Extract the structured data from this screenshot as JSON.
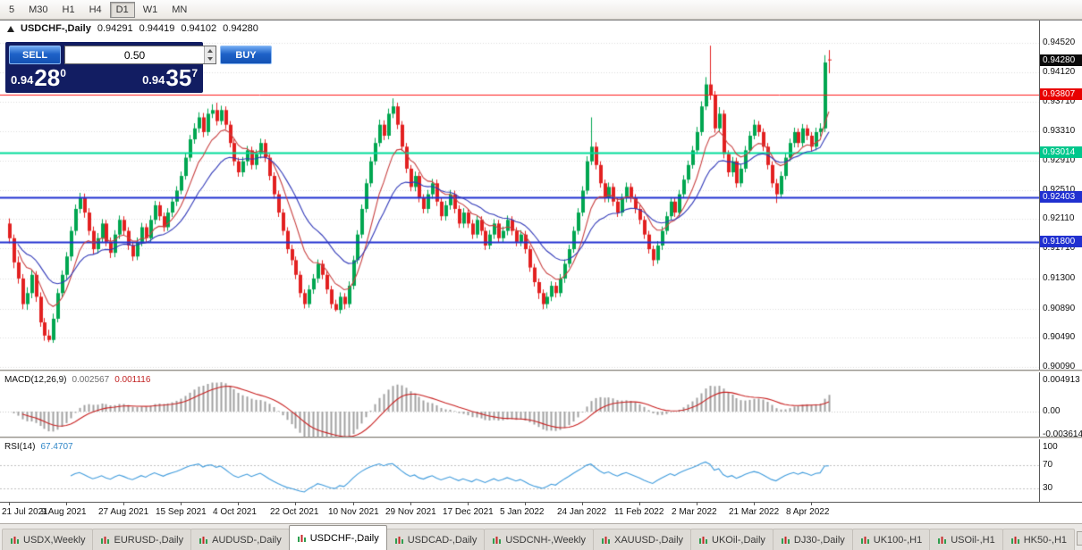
{
  "toolbar": {
    "timeframes": [
      {
        "label": "5",
        "active": false
      },
      {
        "label": "M30",
        "active": false
      },
      {
        "label": "H1",
        "active": false
      },
      {
        "label": "H4",
        "active": false
      },
      {
        "label": "D1",
        "active": true
      },
      {
        "label": "W1",
        "active": false
      },
      {
        "label": "MN",
        "active": false
      }
    ]
  },
  "chart": {
    "symbol_label": "USDCHF-,Daily",
    "ohlc": {
      "open": "0.94291",
      "high": "0.94419",
      "low": "0.94102",
      "close": "0.94280"
    },
    "y_axis": {
      "ticks": [
        "0.94520",
        "0.94120",
        "0.93710",
        "0.93310",
        "0.92910",
        "0.92510",
        "0.92110",
        "0.91710",
        "0.91300",
        "0.90890",
        "0.90490",
        "0.90090"
      ],
      "current": {
        "label": "0.94280",
        "value": 0.9428,
        "color": "#0A0A0A"
      },
      "level_badges": [
        {
          "label": "0.93807",
          "value": 0.93807,
          "color": "#E80000"
        },
        {
          "label": "0.93014",
          "value": 0.93014,
          "color": "#00C78C"
        },
        {
          "label": "0.92403",
          "value": 0.92403,
          "color": "#2030D0"
        },
        {
          "label": "0.91800",
          "value": 0.918,
          "color": "#2030D0"
        }
      ]
    },
    "levels": [
      {
        "value": 0.93807,
        "color": "#FF1A1A",
        "width": 1
      },
      {
        "value": 0.93014,
        "color": "#00DC9A",
        "width": 2
      },
      {
        "value": 0.92403,
        "color": "#2030D0",
        "width": 2
      },
      {
        "value": 0.918,
        "color": "#2030D0",
        "width": 2
      }
    ]
  },
  "trade": {
    "sell_label": "SELL",
    "buy_label": "BUY",
    "volume": "0.50",
    "sell_price": {
      "prefix": "0.94",
      "big": "28",
      "sup": "0"
    },
    "buy_price": {
      "prefix": "0.94",
      "big": "35",
      "sup": "7"
    }
  },
  "indicators": {
    "macd": {
      "label": "MACD(12,26,9)",
      "value_main": "0.002567",
      "value_signal": "0.001116",
      "fast": 12,
      "slow": 26,
      "signal": 9,
      "histogram_color": "#A0A0A0",
      "signal_color": "#C82020",
      "axis": [
        {
          "label": "0.004913",
          "value": 0.004913
        },
        {
          "label": "0.00",
          "value": 0
        },
        {
          "label": "-0.003614",
          "value": -0.003614
        }
      ]
    },
    "rsi": {
      "label": "RSI(14)",
      "value": "67.4707",
      "period": 14,
      "color": "#3F9BDC",
      "levels": [
        70,
        30
      ],
      "axis": [
        {
          "label": "100",
          "value": 100
        },
        {
          "label": "70",
          "value": 70
        },
        {
          "label": "30",
          "value": 30
        }
      ]
    }
  },
  "chart_data": {
    "type": "candlestick",
    "symbol": "USDCHF-",
    "timeframe": "Daily",
    "y_range": [
      0.9006,
      0.9483
    ],
    "x_labels": [
      "21 Jul 2021",
      "9 Aug 2021",
      "27 Aug 2021",
      "15 Sep 2021",
      "4 Oct 2021",
      "22 Oct 2021",
      "10 Nov 2021",
      "29 Nov 2021",
      "17 Dec 2021",
      "5 Jan 2022",
      "24 Jan 2022",
      "11 Feb 2022",
      "2 Mar 2022",
      "21 Mar 2022",
      "8 Apr 2022"
    ],
    "bars_per_label": 13,
    "up_color": "#00A650",
    "down_color": "#E22020",
    "overlays": [
      {
        "name": "ma-fast",
        "type": "ema",
        "period": 9,
        "color": "#C84040"
      },
      {
        "name": "ma-slow",
        "type": "ema",
        "period": 20,
        "color": "#3038B8"
      }
    ],
    "candles": [
      [
        0.9205,
        0.9212,
        0.9178,
        0.9185
      ],
      [
        0.9185,
        0.919,
        0.9144,
        0.9152
      ],
      [
        0.9152,
        0.916,
        0.9123,
        0.913
      ],
      [
        0.913,
        0.9136,
        0.9088,
        0.9095
      ],
      [
        0.9095,
        0.9118,
        0.9087,
        0.911
      ],
      [
        0.911,
        0.9142,
        0.9103,
        0.9135
      ],
      [
        0.9135,
        0.914,
        0.9098,
        0.9105
      ],
      [
        0.9105,
        0.9111,
        0.9064,
        0.907
      ],
      [
        0.907,
        0.9076,
        0.9045,
        0.9052
      ],
      [
        0.9052,
        0.906,
        0.9043,
        0.9046
      ],
      [
        0.9046,
        0.9082,
        0.9042,
        0.9075
      ],
      [
        0.9075,
        0.9116,
        0.907,
        0.911
      ],
      [
        0.911,
        0.9141,
        0.9104,
        0.9135
      ],
      [
        0.9135,
        0.9166,
        0.9129,
        0.916
      ],
      [
        0.916,
        0.9201,
        0.9154,
        0.9195
      ],
      [
        0.9195,
        0.9231,
        0.9189,
        0.9225
      ],
      [
        0.9225,
        0.9247,
        0.9219,
        0.924
      ],
      [
        0.924,
        0.9246,
        0.9213,
        0.922
      ],
      [
        0.922,
        0.9226,
        0.9189,
        0.9195
      ],
      [
        0.9195,
        0.9201,
        0.9163,
        0.917
      ],
      [
        0.917,
        0.9192,
        0.9164,
        0.9185
      ],
      [
        0.9185,
        0.9211,
        0.9179,
        0.9205
      ],
      [
        0.9205,
        0.921,
        0.9174,
        0.918
      ],
      [
        0.918,
        0.9186,
        0.9158,
        0.9165
      ],
      [
        0.9165,
        0.9196,
        0.9159,
        0.919
      ],
      [
        0.919,
        0.9216,
        0.9184,
        0.921
      ],
      [
        0.921,
        0.9215,
        0.9189,
        0.9195
      ],
      [
        0.9195,
        0.92,
        0.9169,
        0.9175
      ],
      [
        0.9175,
        0.918,
        0.9154,
        0.916
      ],
      [
        0.916,
        0.9186,
        0.9155,
        0.918
      ],
      [
        0.918,
        0.9206,
        0.9174,
        0.92
      ],
      [
        0.92,
        0.9205,
        0.9179,
        0.9185
      ],
      [
        0.9185,
        0.9216,
        0.918,
        0.921
      ],
      [
        0.921,
        0.9236,
        0.9204,
        0.923
      ],
      [
        0.923,
        0.9235,
        0.9209,
        0.9215
      ],
      [
        0.9215,
        0.922,
        0.9194,
        0.92
      ],
      [
        0.92,
        0.9226,
        0.9195,
        0.922
      ],
      [
        0.922,
        0.9241,
        0.9214,
        0.9235
      ],
      [
        0.9235,
        0.9256,
        0.9229,
        0.925
      ],
      [
        0.925,
        0.9276,
        0.9245,
        0.927
      ],
      [
        0.927,
        0.9301,
        0.9265,
        0.9295
      ],
      [
        0.9295,
        0.9326,
        0.929,
        0.932
      ],
      [
        0.932,
        0.9342,
        0.9314,
        0.9335
      ],
      [
        0.9335,
        0.9357,
        0.9329,
        0.935
      ],
      [
        0.935,
        0.9356,
        0.9323,
        0.933
      ],
      [
        0.933,
        0.9362,
        0.9325,
        0.9355
      ],
      [
        0.9355,
        0.9368,
        0.9349,
        0.936
      ],
      [
        0.936,
        0.937,
        0.9339,
        0.9345
      ],
      [
        0.9345,
        0.9366,
        0.934,
        0.936
      ],
      [
        0.936,
        0.9365,
        0.9334,
        0.934
      ],
      [
        0.934,
        0.9345,
        0.9309,
        0.9315
      ],
      [
        0.9315,
        0.932,
        0.9284,
        0.929
      ],
      [
        0.929,
        0.9295,
        0.9269,
        0.9275
      ],
      [
        0.9275,
        0.9296,
        0.9269,
        0.929
      ],
      [
        0.929,
        0.9311,
        0.9284,
        0.9305
      ],
      [
        0.9305,
        0.931,
        0.9279,
        0.9285
      ],
      [
        0.9285,
        0.9306,
        0.9279,
        0.93
      ],
      [
        0.93,
        0.9321,
        0.9294,
        0.9315
      ],
      [
        0.9315,
        0.932,
        0.9289,
        0.9295
      ],
      [
        0.9295,
        0.93,
        0.9264,
        0.927
      ],
      [
        0.927,
        0.9275,
        0.9239,
        0.9245
      ],
      [
        0.9245,
        0.925,
        0.9214,
        0.922
      ],
      [
        0.922,
        0.9225,
        0.9189,
        0.9195
      ],
      [
        0.9195,
        0.92,
        0.9164,
        0.917
      ],
      [
        0.917,
        0.9176,
        0.9148,
        0.9155
      ],
      [
        0.9155,
        0.916,
        0.9129,
        0.9135
      ],
      [
        0.9135,
        0.914,
        0.9104,
        0.911
      ],
      [
        0.911,
        0.9115,
        0.9089,
        0.9095
      ],
      [
        0.9095,
        0.9121,
        0.909,
        0.9115
      ],
      [
        0.9115,
        0.9136,
        0.9109,
        0.913
      ],
      [
        0.913,
        0.9156,
        0.9124,
        0.915
      ],
      [
        0.915,
        0.9155,
        0.9129,
        0.9135
      ],
      [
        0.9135,
        0.914,
        0.9109,
        0.9115
      ],
      [
        0.9115,
        0.912,
        0.9089,
        0.9095
      ],
      [
        0.9095,
        0.9101,
        0.9085,
        0.9087
      ],
      [
        0.9087,
        0.9111,
        0.9082,
        0.9105
      ],
      [
        0.9105,
        0.911,
        0.9088,
        0.9095
      ],
      [
        0.9095,
        0.9126,
        0.909,
        0.912
      ],
      [
        0.912,
        0.9161,
        0.9115,
        0.9155
      ],
      [
        0.9155,
        0.9196,
        0.915,
        0.919
      ],
      [
        0.919,
        0.9231,
        0.9185,
        0.9225
      ],
      [
        0.9225,
        0.9266,
        0.922,
        0.926
      ],
      [
        0.926,
        0.9296,
        0.9255,
        0.929
      ],
      [
        0.929,
        0.9322,
        0.9285,
        0.9315
      ],
      [
        0.9315,
        0.9347,
        0.931,
        0.934
      ],
      [
        0.934,
        0.9346,
        0.9319,
        0.9325
      ],
      [
        0.9325,
        0.9362,
        0.932,
        0.9355
      ],
      [
        0.9355,
        0.9376,
        0.9349,
        0.9365
      ],
      [
        0.9365,
        0.937,
        0.9334,
        0.934
      ],
      [
        0.934,
        0.9345,
        0.9304,
        0.931
      ],
      [
        0.931,
        0.9315,
        0.9274,
        0.928
      ],
      [
        0.928,
        0.9285,
        0.9249,
        0.9255
      ],
      [
        0.9255,
        0.9276,
        0.9249,
        0.927
      ],
      [
        0.927,
        0.9275,
        0.9234,
        0.924
      ],
      [
        0.924,
        0.9245,
        0.9219,
        0.9225
      ],
      [
        0.9225,
        0.9251,
        0.9219,
        0.9245
      ],
      [
        0.9245,
        0.9266,
        0.9239,
        0.926
      ],
      [
        0.926,
        0.9265,
        0.9229,
        0.9235
      ],
      [
        0.9235,
        0.924,
        0.9209,
        0.9215
      ],
      [
        0.9215,
        0.9236,
        0.9209,
        0.923
      ],
      [
        0.923,
        0.9251,
        0.9224,
        0.9245
      ],
      [
        0.9245,
        0.925,
        0.9219,
        0.9225
      ],
      [
        0.9225,
        0.923,
        0.9199,
        0.9205
      ],
      [
        0.9205,
        0.9226,
        0.9199,
        0.922
      ],
      [
        0.922,
        0.9225,
        0.9199,
        0.9205
      ],
      [
        0.9205,
        0.921,
        0.9184,
        0.919
      ],
      [
        0.919,
        0.9216,
        0.9185,
        0.921
      ],
      [
        0.921,
        0.9215,
        0.9189,
        0.9195
      ],
      [
        0.9195,
        0.92,
        0.9169,
        0.9175
      ],
      [
        0.9175,
        0.9196,
        0.917,
        0.919
      ],
      [
        0.919,
        0.9211,
        0.9184,
        0.9205
      ],
      [
        0.9205,
        0.921,
        0.9179,
        0.9185
      ],
      [
        0.9185,
        0.9201,
        0.9179,
        0.9195
      ],
      [
        0.9195,
        0.9216,
        0.9189,
        0.921
      ],
      [
        0.921,
        0.9215,
        0.9189,
        0.9195
      ],
      [
        0.9195,
        0.92,
        0.9174,
        0.918
      ],
      [
        0.918,
        0.9196,
        0.9174,
        0.919
      ],
      [
        0.919,
        0.9195,
        0.9164,
        0.917
      ],
      [
        0.917,
        0.9175,
        0.9139,
        0.9145
      ],
      [
        0.9145,
        0.915,
        0.9119,
        0.9125
      ],
      [
        0.9125,
        0.913,
        0.9102,
        0.911
      ],
      [
        0.911,
        0.9115,
        0.9088,
        0.9095
      ],
      [
        0.9095,
        0.9111,
        0.9089,
        0.9105
      ],
      [
        0.9105,
        0.9126,
        0.9099,
        0.912
      ],
      [
        0.912,
        0.9125,
        0.9104,
        0.911
      ],
      [
        0.911,
        0.9136,
        0.9105,
        0.913
      ],
      [
        0.913,
        0.9156,
        0.9124,
        0.915
      ],
      [
        0.915,
        0.9176,
        0.9145,
        0.917
      ],
      [
        0.917,
        0.9201,
        0.9165,
        0.9195
      ],
      [
        0.9195,
        0.9226,
        0.919,
        0.922
      ],
      [
        0.922,
        0.9256,
        0.9215,
        0.925
      ],
      [
        0.925,
        0.9297,
        0.9245,
        0.929
      ],
      [
        0.929,
        0.935,
        0.9285,
        0.931
      ],
      [
        0.931,
        0.9316,
        0.9279,
        0.9285
      ],
      [
        0.9285,
        0.929,
        0.9254,
        0.926
      ],
      [
        0.926,
        0.9265,
        0.9234,
        0.924
      ],
      [
        0.924,
        0.9261,
        0.9234,
        0.9255
      ],
      [
        0.9255,
        0.926,
        0.9229,
        0.9235
      ],
      [
        0.9235,
        0.924,
        0.9214,
        0.922
      ],
      [
        0.922,
        0.9246,
        0.9215,
        0.924
      ],
      [
        0.924,
        0.9261,
        0.9234,
        0.9255
      ],
      [
        0.9255,
        0.926,
        0.9234,
        0.924
      ],
      [
        0.924,
        0.9245,
        0.9219,
        0.9225
      ],
      [
        0.9225,
        0.923,
        0.9204,
        0.921
      ],
      [
        0.921,
        0.9215,
        0.9184,
        0.919
      ],
      [
        0.919,
        0.9195,
        0.9164,
        0.917
      ],
      [
        0.917,
        0.9175,
        0.9147,
        0.9155
      ],
      [
        0.9155,
        0.9181,
        0.915,
        0.9175
      ],
      [
        0.9175,
        0.9201,
        0.9169,
        0.9195
      ],
      [
        0.9195,
        0.9221,
        0.919,
        0.9215
      ],
      [
        0.9215,
        0.9241,
        0.921,
        0.9235
      ],
      [
        0.9235,
        0.924,
        0.9214,
        0.922
      ],
      [
        0.922,
        0.9251,
        0.9215,
        0.9245
      ],
      [
        0.9245,
        0.9271,
        0.924,
        0.9265
      ],
      [
        0.9265,
        0.9291,
        0.926,
        0.9285
      ],
      [
        0.9285,
        0.9311,
        0.928,
        0.9305
      ],
      [
        0.9305,
        0.9337,
        0.93,
        0.933
      ],
      [
        0.933,
        0.9372,
        0.9325,
        0.9365
      ],
      [
        0.9365,
        0.9405,
        0.936,
        0.9395
      ],
      [
        0.9395,
        0.9448,
        0.9374,
        0.938
      ],
      [
        0.938,
        0.9386,
        0.9329,
        0.9335
      ],
      [
        0.9335,
        0.9364,
        0.933,
        0.9355
      ],
      [
        0.9355,
        0.936,
        0.9294,
        0.93
      ],
      [
        0.93,
        0.9305,
        0.9269,
        0.9275
      ],
      [
        0.9275,
        0.9296,
        0.9269,
        0.929
      ],
      [
        0.929,
        0.9295,
        0.9254,
        0.926
      ],
      [
        0.926,
        0.9286,
        0.9255,
        0.928
      ],
      [
        0.928,
        0.9311,
        0.9275,
        0.9305
      ],
      [
        0.9305,
        0.9331,
        0.93,
        0.9325
      ],
      [
        0.9325,
        0.9347,
        0.932,
        0.934
      ],
      [
        0.934,
        0.9345,
        0.9324,
        0.933
      ],
      [
        0.933,
        0.9335,
        0.9304,
        0.931
      ],
      [
        0.931,
        0.9315,
        0.9279,
        0.9285
      ],
      [
        0.9285,
        0.929,
        0.9254,
        0.926
      ],
      [
        0.926,
        0.9266,
        0.9233,
        0.9245
      ],
      [
        0.9245,
        0.9276,
        0.924,
        0.927
      ],
      [
        0.927,
        0.9301,
        0.9265,
        0.9295
      ],
      [
        0.9295,
        0.9321,
        0.929,
        0.9315
      ],
      [
        0.9315,
        0.9336,
        0.9309,
        0.933
      ],
      [
        0.933,
        0.9335,
        0.9309,
        0.9315
      ],
      [
        0.9315,
        0.9341,
        0.931,
        0.9335
      ],
      [
        0.9335,
        0.934,
        0.9319,
        0.9325
      ],
      [
        0.9325,
        0.933,
        0.9304,
        0.931
      ],
      [
        0.931,
        0.9336,
        0.9305,
        0.933
      ],
      [
        0.933,
        0.9342,
        0.9324,
        0.9335
      ],
      [
        0.9335,
        0.9435,
        0.933,
        0.9425
      ],
      [
        0.94291,
        0.94419,
        0.94102,
        0.9428
      ]
    ]
  },
  "tabs": {
    "items": [
      {
        "label": "USDX,Weekly",
        "active": false
      },
      {
        "label": "EURUSD-,Daily",
        "active": false
      },
      {
        "label": "AUDUSD-,Daily",
        "active": false
      },
      {
        "label": "USDCHF-,Daily",
        "active": true
      },
      {
        "label": "USDCAD-,Daily",
        "active": false
      },
      {
        "label": "USDCNH-,Weekly",
        "active": false
      },
      {
        "label": "XAUUSD-,Daily",
        "active": false
      },
      {
        "label": "UKOil-,Daily",
        "active": false
      },
      {
        "label": "DJ30-,Daily",
        "active": false
      },
      {
        "label": "UK100-,H1",
        "active": false
      },
      {
        "label": "USOil-,H1",
        "active": false
      },
      {
        "label": "HK50-,H1",
        "active": false
      }
    ]
  }
}
